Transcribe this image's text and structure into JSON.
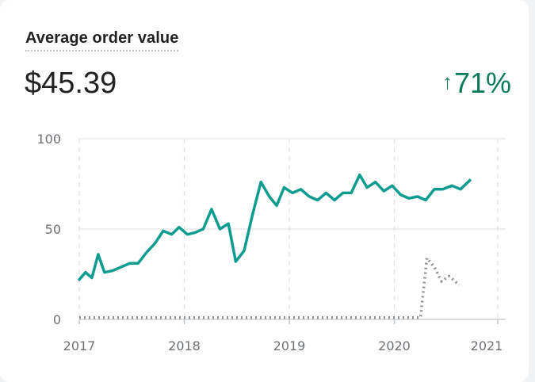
{
  "card": {
    "title": "Average order value",
    "value": "$45.39",
    "change_arrow": "↑",
    "change_value": "71%",
    "change_color": "#0b7a5b",
    "change_icon": "arrow-up-icon"
  },
  "chart_data": {
    "type": "line",
    "title": "",
    "xlabel": "",
    "ylabel": "",
    "ylim": [
      0,
      100
    ],
    "yticks": [
      0,
      50,
      100
    ],
    "xticks": [
      "2017",
      "2018",
      "2019",
      "2020",
      "2021"
    ],
    "xlim": [
      2017.0,
      2021.0
    ],
    "grid": "dashed vertical at years, solid horizontal",
    "series": [
      {
        "color": "#0e9c91",
        "style": "solid",
        "points": [
          [
            2017.0,
            22
          ],
          [
            2017.06,
            26
          ],
          [
            2017.12,
            23
          ],
          [
            2017.18,
            36
          ],
          [
            2017.24,
            26
          ],
          [
            2017.32,
            27
          ],
          [
            2017.4,
            29
          ],
          [
            2017.48,
            31
          ],
          [
            2017.56,
            31
          ],
          [
            2017.64,
            37
          ],
          [
            2017.72,
            42
          ],
          [
            2017.8,
            49
          ],
          [
            2017.88,
            47
          ],
          [
            2017.95,
            51
          ],
          [
            2018.03,
            47
          ],
          [
            2018.1,
            48
          ],
          [
            2018.18,
            50
          ],
          [
            2018.26,
            61
          ],
          [
            2018.34,
            50
          ],
          [
            2018.42,
            53
          ],
          [
            2018.49,
            32
          ],
          [
            2018.57,
            38
          ],
          [
            2018.65,
            58
          ],
          [
            2018.73,
            76
          ],
          [
            2018.81,
            68
          ],
          [
            2018.88,
            63
          ],
          [
            2018.95,
            73
          ],
          [
            2019.03,
            70
          ],
          [
            2019.11,
            72
          ],
          [
            2019.19,
            68
          ],
          [
            2019.27,
            66
          ],
          [
            2019.35,
            70
          ],
          [
            2019.43,
            66
          ],
          [
            2019.51,
            70
          ],
          [
            2019.59,
            70
          ],
          [
            2019.67,
            80
          ],
          [
            2019.74,
            73
          ],
          [
            2019.82,
            76
          ],
          [
            2019.9,
            71
          ],
          [
            2019.98,
            74
          ],
          [
            2020.06,
            69
          ],
          [
            2020.14,
            67
          ],
          [
            2020.22,
            68
          ],
          [
            2020.3,
            66
          ],
          [
            2020.38,
            72
          ],
          [
            2020.46,
            72
          ],
          [
            2020.55,
            74
          ],
          [
            2020.63,
            72
          ],
          [
            2020.72,
            77
          ]
        ]
      },
      {
        "color": "#8c9196",
        "style": "dotted",
        "points": [
          [
            2017.0,
            1
          ],
          [
            2017.5,
            1
          ],
          [
            2018.0,
            1
          ],
          [
            2018.5,
            1
          ],
          [
            2019.0,
            1
          ],
          [
            2019.5,
            1
          ],
          [
            2020.0,
            1
          ],
          [
            2020.25,
            1
          ],
          [
            2020.31,
            34
          ],
          [
            2020.38,
            29
          ],
          [
            2020.45,
            21
          ],
          [
            2020.52,
            24
          ],
          [
            2020.58,
            21
          ],
          [
            2020.62,
            19
          ]
        ]
      }
    ]
  }
}
